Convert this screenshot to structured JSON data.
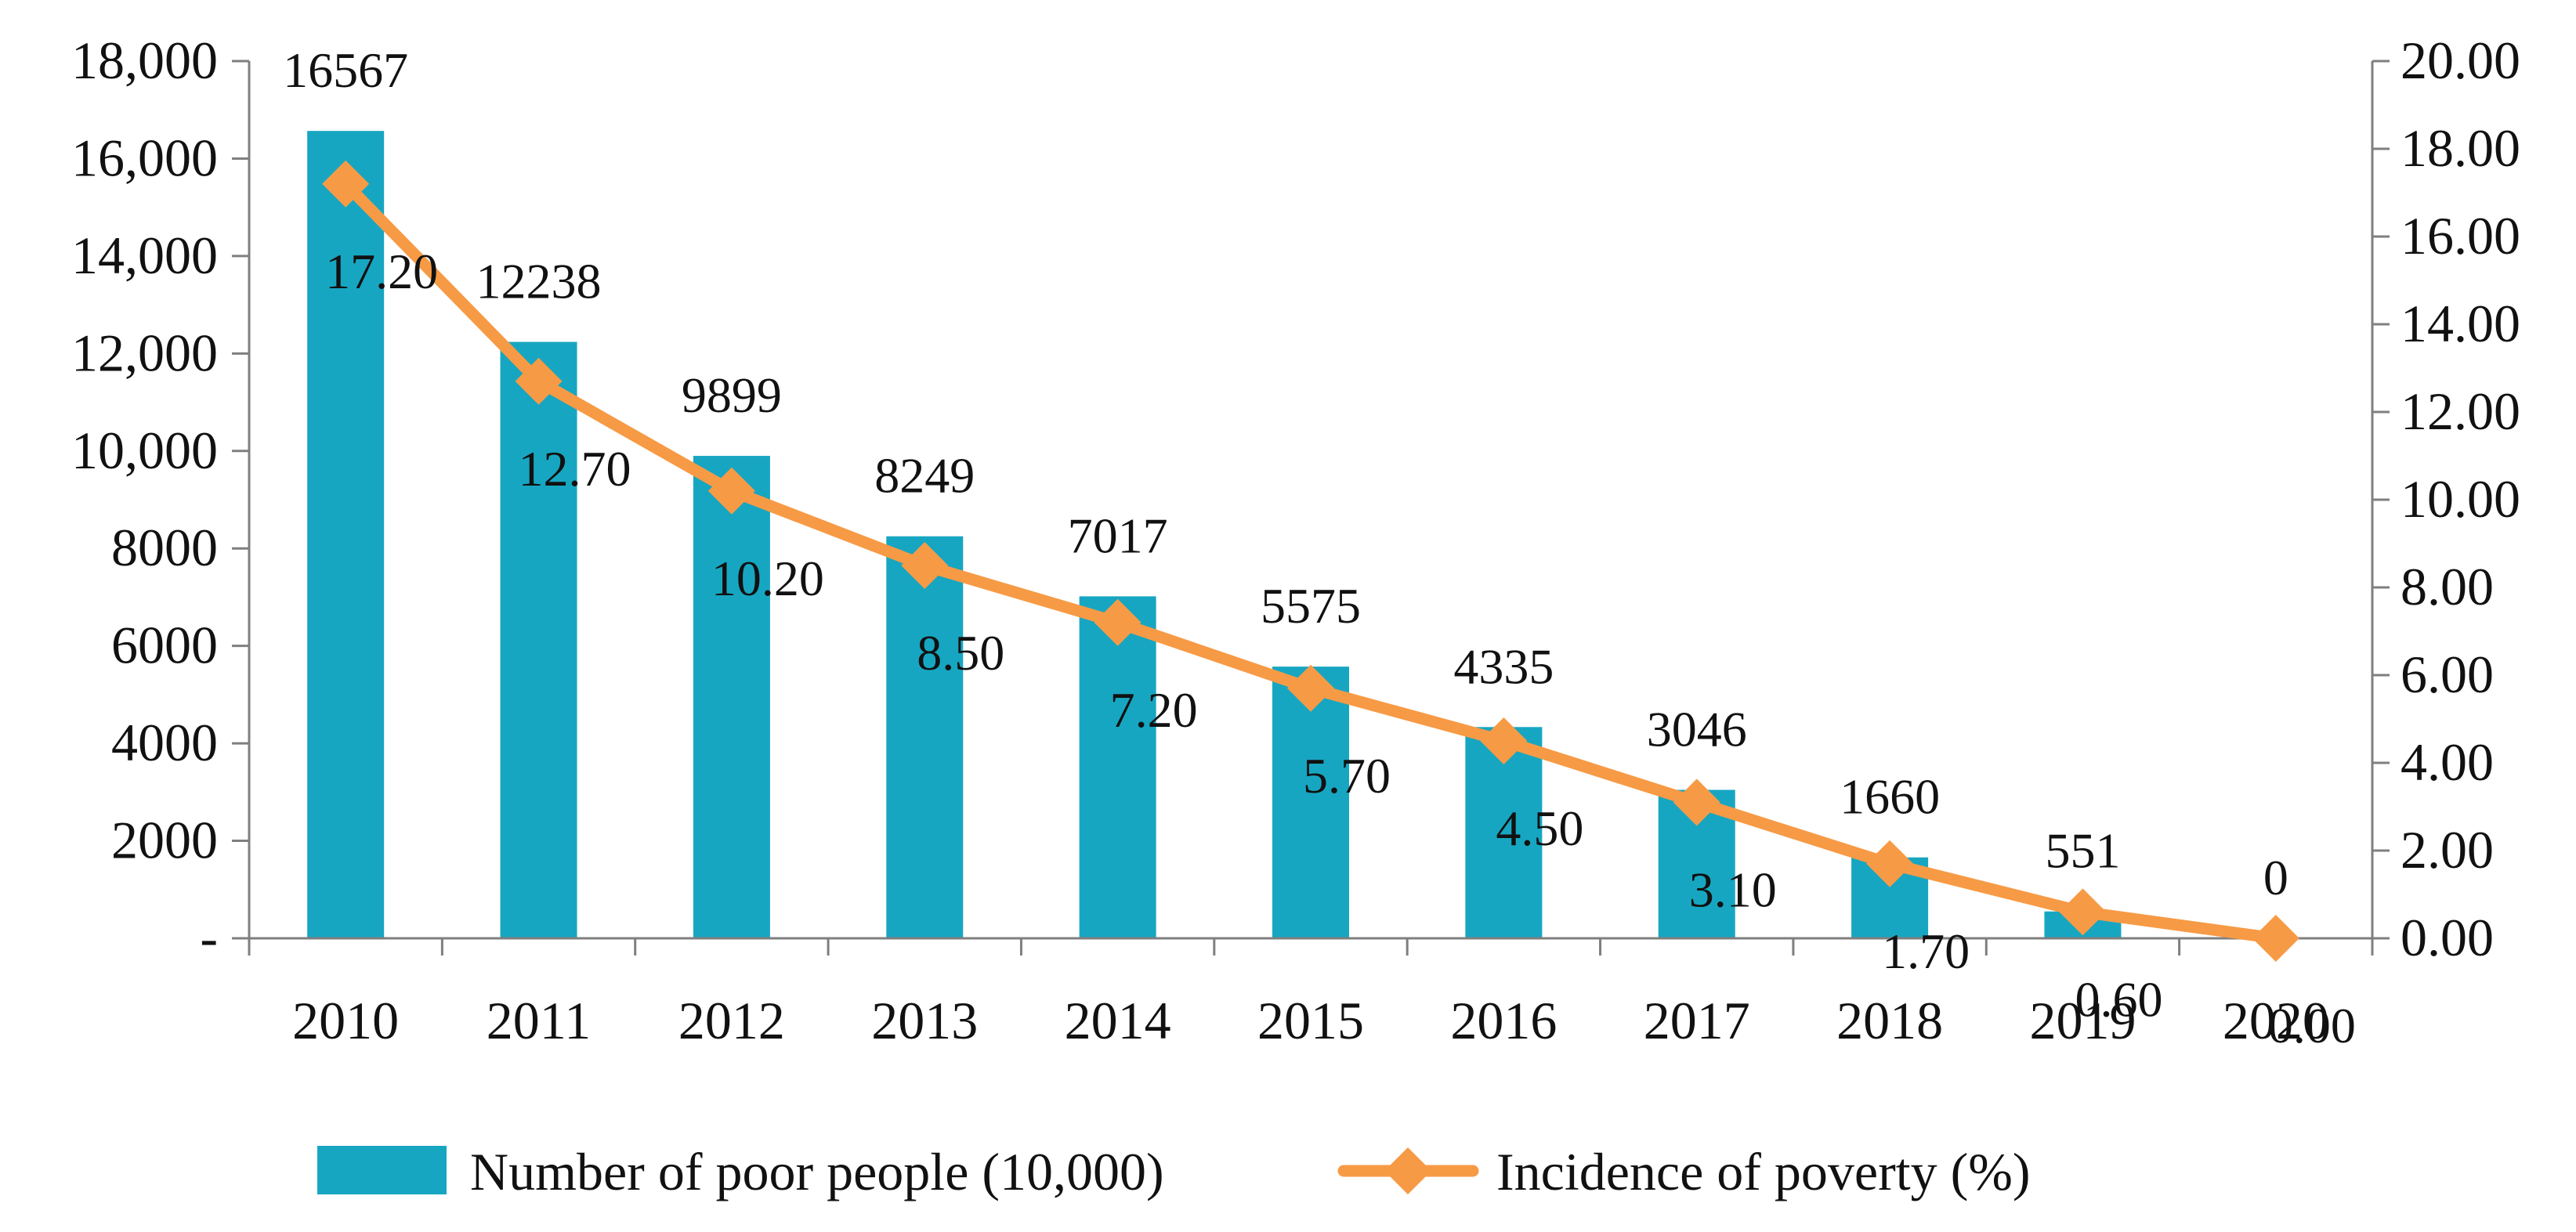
{
  "chart_data": {
    "type": "bar",
    "title": "",
    "categories": [
      "2010",
      "2011",
      "2012",
      "2013",
      "2014",
      "2015",
      "2016",
      "2017",
      "2018",
      "2019",
      "2020"
    ],
    "series": [
      {
        "name": "Number of poor people (10,000)",
        "type": "bar",
        "axis": "left",
        "color": "#17a6c1",
        "values": [
          16567,
          12238,
          9899,
          8249,
          7017,
          5575,
          4335,
          3046,
          1660,
          551,
          0
        ],
        "labels": [
          "16567",
          "12238",
          "9899",
          "8249",
          "7017",
          "5575",
          "4335",
          "3046",
          "1660",
          "551",
          "0"
        ]
      },
      {
        "name": "Incidence of poverty (%)",
        "type": "line",
        "marker": "diamond",
        "axis": "right",
        "color": "#f79a45",
        "values": [
          17.2,
          12.7,
          10.2,
          8.5,
          7.2,
          5.7,
          4.5,
          3.1,
          1.7,
          0.6,
          0
        ],
        "labels": [
          "17.20",
          "12.70",
          "10.20",
          "8.50",
          "7.20",
          "5.70",
          "4.50",
          "3.10",
          "1.70",
          "0.60",
          "0.00"
        ]
      }
    ],
    "y_left": {
      "ylim": [
        0,
        18000
      ],
      "ticks": [
        0,
        2000,
        4000,
        6000,
        8000,
        10000,
        12000,
        14000,
        16000,
        18000
      ],
      "tick_labels": [
        "-",
        "2000",
        "4000",
        "6000",
        "8000",
        "10,000",
        "12,000",
        "14,000",
        "16,000",
        "18,000"
      ]
    },
    "y_right": {
      "ylim": [
        0,
        20
      ],
      "ticks": [
        0,
        2,
        4,
        6,
        8,
        10,
        12,
        14,
        16,
        18,
        20
      ],
      "tick_labels": [
        "0.00",
        "2.00",
        "4.00",
        "6.00",
        "8.00",
        "10.00",
        "12.00",
        "14.00",
        "16.00",
        "18.00",
        "20.00"
      ]
    },
    "xlabel": "",
    "ylabel": "",
    "grid": false,
    "legend": {
      "position": "bottom",
      "entries": [
        "Number of poor people (10,000)",
        "Incidence of poverty (%)"
      ]
    },
    "axis_color": "#7f7f7f"
  }
}
